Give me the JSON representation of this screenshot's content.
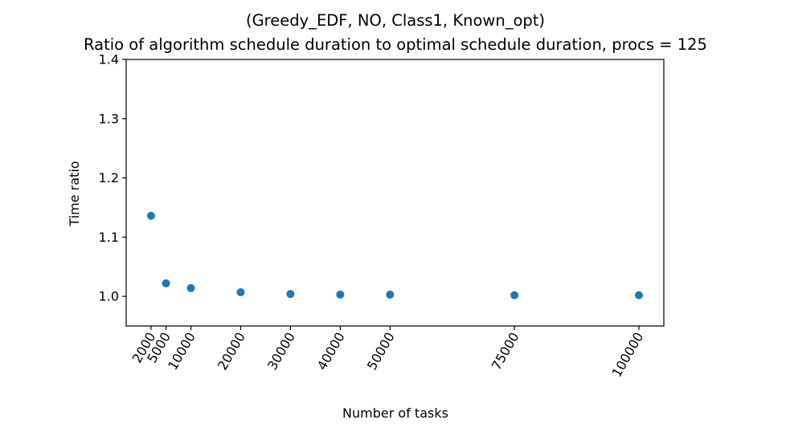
{
  "chart_data": {
    "type": "scatter",
    "title": "(Greedy_EDF, NO, Class1, Known_opt)",
    "subtitle": "Ratio of algorithm schedule duration to optimal schedule duration, procs = 125",
    "xlabel": "Number of tasks",
    "ylabel": "Time ratio",
    "xlim": [
      -3000,
      105000
    ],
    "ylim": [
      0.95,
      1.4
    ],
    "xticks": [
      2000,
      5000,
      10000,
      20000,
      30000,
      40000,
      50000,
      75000,
      100000
    ],
    "xtick_labels": [
      "2000",
      "5000",
      "10000",
      "20000",
      "30000",
      "40000",
      "50000",
      "75000",
      "100000"
    ],
    "yticks": [
      1.0,
      1.1,
      1.2,
      1.3,
      1.4
    ],
    "ytick_labels": [
      "1.0",
      "1.1",
      "1.2",
      "1.3",
      "1.4"
    ],
    "grid": false,
    "x": [
      2000,
      5000,
      10000,
      20000,
      30000,
      40000,
      50000,
      75000,
      100000
    ],
    "y": [
      1.136,
      1.022,
      1.014,
      1.007,
      1.004,
      1.003,
      1.003,
      1.002,
      1.002
    ],
    "marker_color": "#1f77b4"
  }
}
